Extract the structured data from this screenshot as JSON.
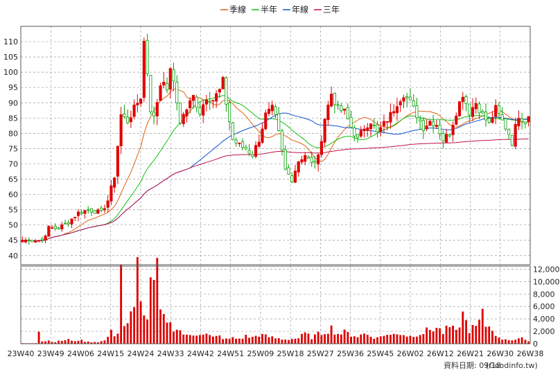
{
  "chart_data": {
    "type": "candlestick",
    "legend": {
      "placement": "top-center",
      "items": [
        {
          "name": "季線",
          "color": "#e06010"
        },
        {
          "name": "半年",
          "color": "#10c010"
        },
        {
          "name": "年線",
          "color": "#1050d0"
        },
        {
          "name": "三年",
          "color": "#c0104a"
        }
      ]
    },
    "price_axis": {
      "position": "left",
      "ticks": [
        "40",
        "45",
        "50",
        "55",
        "60",
        "65",
        "70",
        "75",
        "80",
        "85",
        "90",
        "95",
        "100",
        "105",
        "110"
      ],
      "ylim": [
        37,
        115
      ]
    },
    "volume_axis": {
      "position": "right",
      "ticks": [
        "0",
        "2,000",
        "4,000",
        "6,000",
        "8,000",
        "10,000",
        "12,000"
      ],
      "ylim": [
        0,
        12500
      ]
    },
    "x_ticks": [
      "23W40",
      "23W49",
      "24W06",
      "24W15",
      "24W24",
      "24W33",
      "24W42",
      "24W51",
      "25W09",
      "25W18",
      "25W27",
      "25W36",
      "25W45",
      "26W02",
      "26W12",
      "26W21",
      "26W30",
      "26W38"
    ],
    "grid": true,
    "colors": {
      "up": "#e00000",
      "down": "#00a000",
      "volume": "#dd0000"
    },
    "footer": "資料日期: 09/18",
    "source": "(Goodinfo.tw)",
    "anchors": {
      "close": [
        [
          0,
          45
        ],
        [
          4,
          45
        ],
        [
          6,
          45
        ],
        [
          8,
          49
        ],
        [
          11,
          49
        ],
        [
          14,
          51
        ],
        [
          17,
          54
        ],
        [
          20,
          55
        ],
        [
          24,
          54
        ],
        [
          26,
          58
        ],
        [
          28,
          66
        ],
        [
          30,
          86
        ],
        [
          32,
          84
        ],
        [
          34,
          88
        ],
        [
          36,
          92
        ],
        [
          37,
          110
        ],
        [
          38,
          100
        ],
        [
          39,
          88
        ],
        [
          40,
          85
        ],
        [
          42,
          96
        ],
        [
          43,
          98
        ],
        [
          44,
          93
        ],
        [
          45,
          102
        ],
        [
          46,
          96
        ],
        [
          47,
          90
        ],
        [
          48,
          84
        ],
        [
          50,
          88
        ],
        [
          52,
          92
        ],
        [
          54,
          87
        ],
        [
          56,
          92
        ],
        [
          58,
          91
        ],
        [
          60,
          94
        ],
        [
          61,
          97
        ],
        [
          62,
          90
        ],
        [
          64,
          78
        ],
        [
          66,
          76
        ],
        [
          68,
          75
        ],
        [
          70,
          73
        ],
        [
          72,
          78
        ],
        [
          74,
          86
        ],
        [
          76,
          88
        ],
        [
          77,
          85
        ],
        [
          78,
          80
        ],
        [
          80,
          68
        ],
        [
          82,
          65
        ],
        [
          84,
          71
        ],
        [
          86,
          73
        ],
        [
          88,
          70
        ],
        [
          90,
          72
        ],
        [
          92,
          85
        ],
        [
          94,
          93
        ],
        [
          96,
          88
        ],
        [
          98,
          87
        ],
        [
          100,
          82
        ],
        [
          102,
          78
        ],
        [
          104,
          82
        ],
        [
          106,
          84
        ],
        [
          108,
          80
        ],
        [
          110,
          83
        ],
        [
          112,
          86
        ],
        [
          114,
          90
        ],
        [
          116,
          93
        ],
        [
          118,
          90
        ],
        [
          120,
          86
        ],
        [
          122,
          82
        ],
        [
          124,
          84
        ],
        [
          126,
          83
        ],
        [
          128,
          78
        ],
        [
          130,
          80
        ],
        [
          132,
          87
        ],
        [
          134,
          93
        ],
        [
          136,
          87
        ],
        [
          138,
          90
        ],
        [
          140,
          86
        ],
        [
          142,
          83
        ],
        [
          144,
          88
        ],
        [
          146,
          84
        ],
        [
          148,
          80
        ],
        [
          149,
          77
        ],
        [
          150,
          82
        ],
        [
          151,
          86
        ],
        [
          152,
          85
        ],
        [
          153,
          84
        ],
        [
          154,
          86
        ]
      ],
      "vol": [
        [
          0,
          80
        ],
        [
          4,
          120
        ],
        [
          5,
          2400
        ],
        [
          6,
          400
        ],
        [
          8,
          500
        ],
        [
          10,
          300
        ],
        [
          12,
          500
        ],
        [
          14,
          700
        ],
        [
          15,
          400
        ],
        [
          17,
          600
        ],
        [
          20,
          300
        ],
        [
          23,
          300
        ],
        [
          25,
          500
        ],
        [
          27,
          1800
        ],
        [
          28,
          1500
        ],
        [
          29,
          2000
        ],
        [
          30,
          12600
        ],
        [
          31,
          3000
        ],
        [
          32,
          2800
        ],
        [
          33,
          4500
        ],
        [
          34,
          5000
        ],
        [
          35,
          12500
        ],
        [
          36,
          9000
        ],
        [
          37,
          4000
        ],
        [
          38,
          4500
        ],
        [
          39,
          8500
        ],
        [
          40,
          9500
        ],
        [
          41,
          10800
        ],
        [
          42,
          5000
        ],
        [
          43,
          3800
        ],
        [
          44,
          4200
        ],
        [
          45,
          3000
        ],
        [
          47,
          2500
        ],
        [
          50,
          1200
        ],
        [
          52,
          1500
        ],
        [
          54,
          1800
        ],
        [
          56,
          1500
        ],
        [
          58,
          1000
        ],
        [
          60,
          1200
        ],
        [
          62,
          700
        ],
        [
          64,
          900
        ],
        [
          66,
          800
        ],
        [
          68,
          1200
        ],
        [
          70,
          1000
        ],
        [
          72,
          1500
        ],
        [
          74,
          1200
        ],
        [
          77,
          900
        ],
        [
          80,
          700
        ],
        [
          82,
          800
        ],
        [
          84,
          900
        ],
        [
          86,
          1600
        ],
        [
          88,
          1000
        ],
        [
          90,
          1500
        ],
        [
          92,
          2000
        ],
        [
          94,
          2500
        ],
        [
          96,
          1600
        ],
        [
          98,
          1800
        ],
        [
          100,
          1500
        ],
        [
          102,
          1200
        ],
        [
          104,
          1600
        ],
        [
          106,
          1300
        ],
        [
          108,
          900
        ],
        [
          110,
          1500
        ],
        [
          112,
          1300
        ],
        [
          114,
          1800
        ],
        [
          116,
          1500
        ],
        [
          118,
          1200
        ],
        [
          120,
          1600
        ],
        [
          122,
          1800
        ],
        [
          124,
          2300
        ],
        [
          126,
          2600
        ],
        [
          128,
          1800
        ],
        [
          130,
          2700
        ],
        [
          132,
          1800
        ],
        [
          133,
          3400
        ],
        [
          134,
          4600
        ],
        [
          136,
          2300
        ],
        [
          138,
          2600
        ],
        [
          139,
          3400
        ],
        [
          140,
          4500
        ],
        [
          141,
          3000
        ],
        [
          143,
          2500
        ],
        [
          145,
          800
        ],
        [
          147,
          800
        ],
        [
          149,
          600
        ],
        [
          151,
          700
        ],
        [
          153,
          900
        ],
        [
          154,
          400
        ]
      ]
    }
  }
}
